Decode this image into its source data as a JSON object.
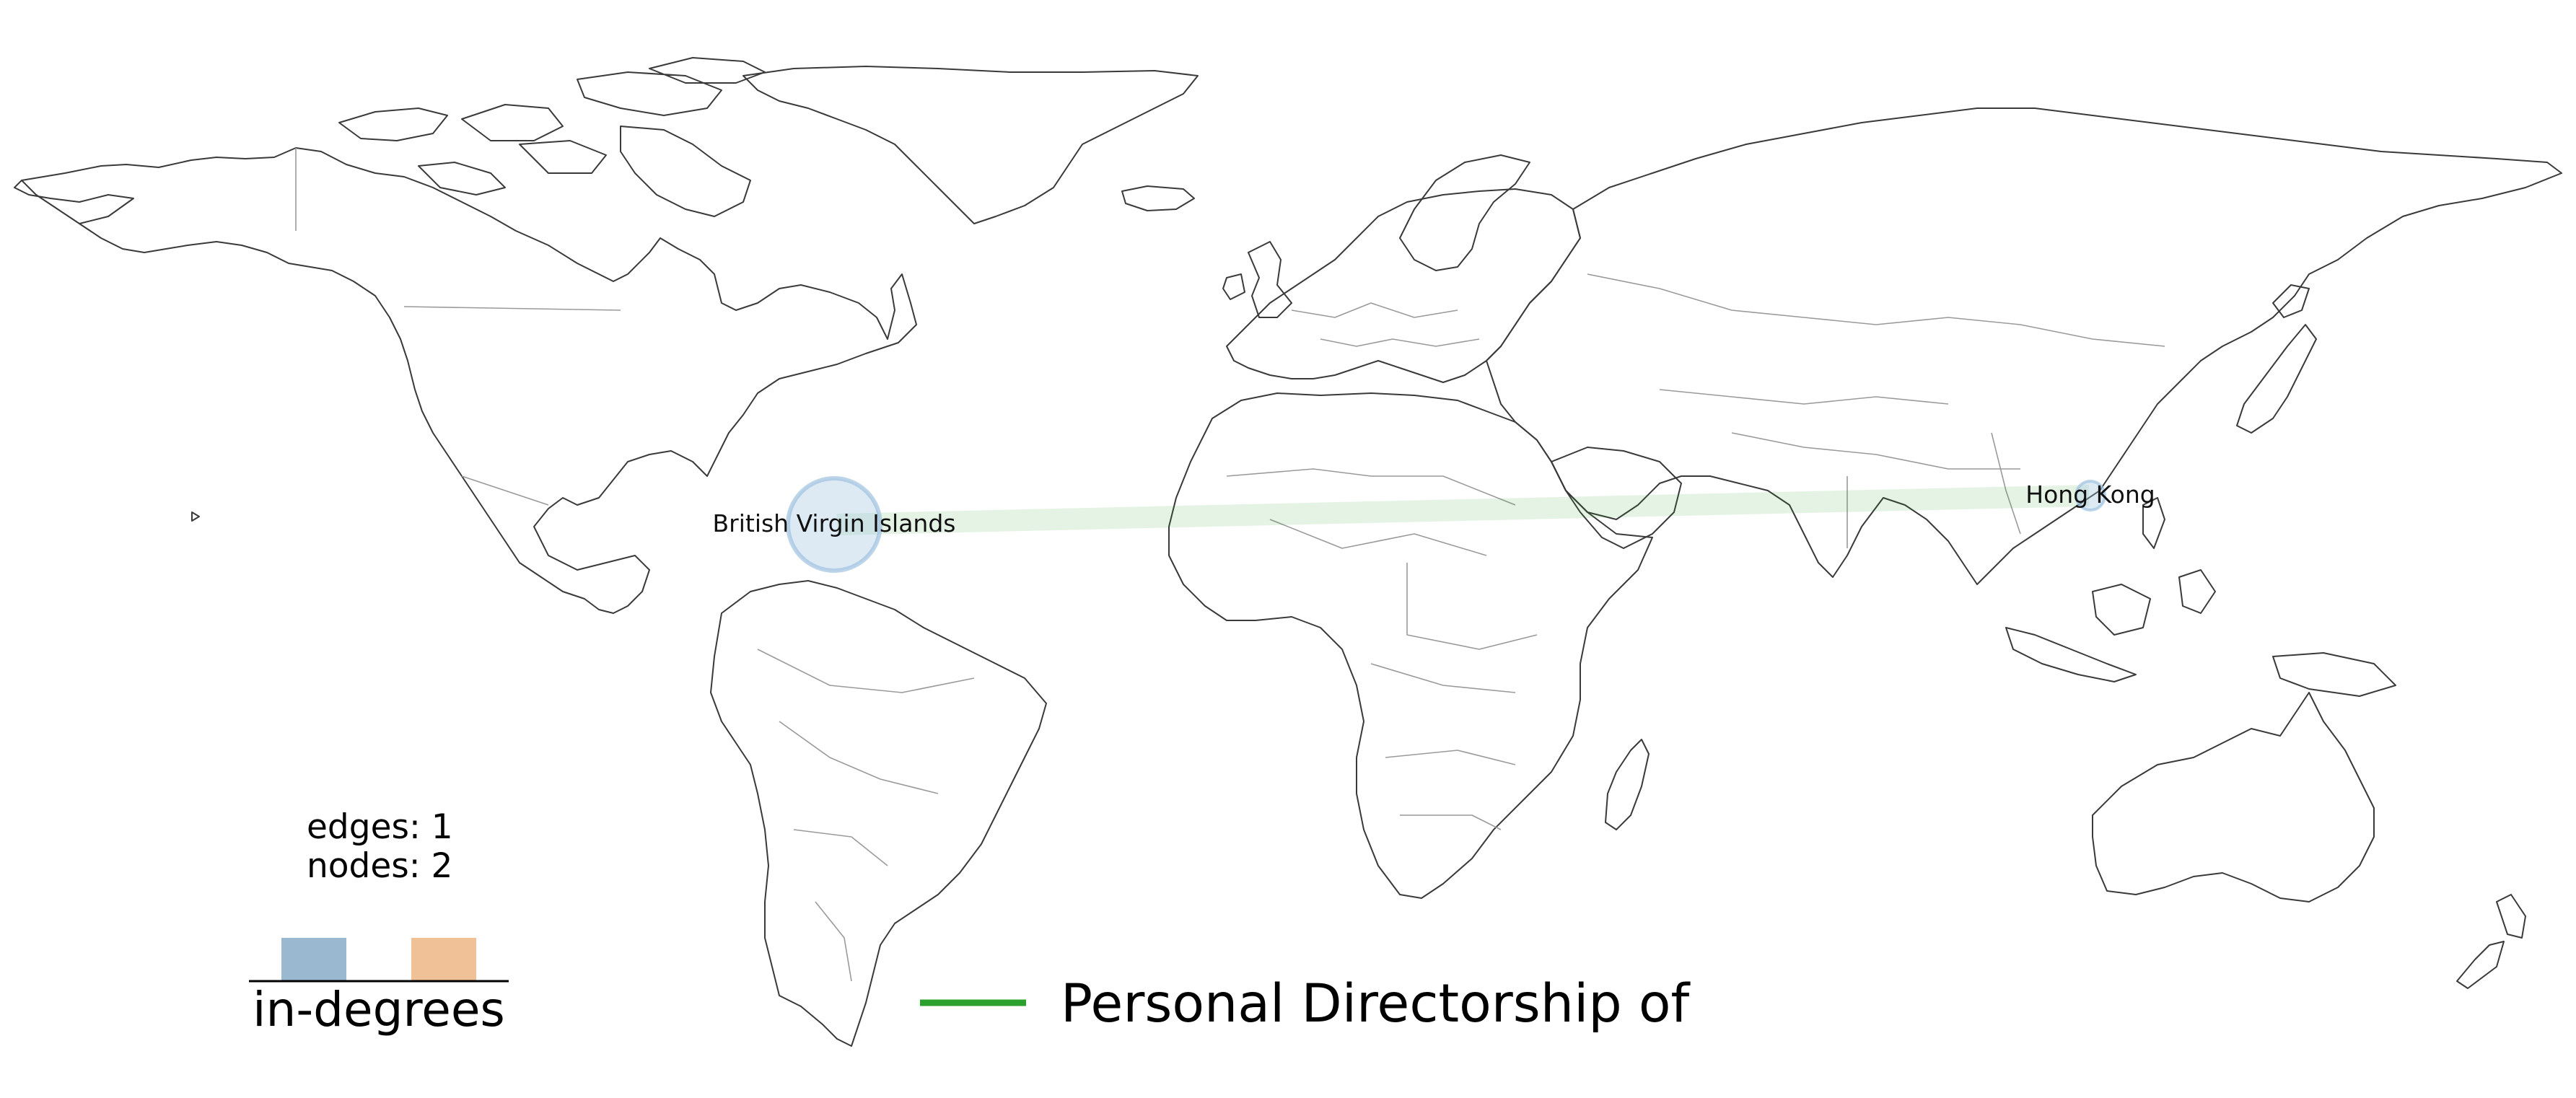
{
  "map": {
    "nodes": [
      {
        "id": "bvi",
        "label": "British Virgin Islands",
        "lon": -64.6,
        "lat": 18.4,
        "size": "large"
      },
      {
        "id": "hk",
        "label": "Hong Kong",
        "lon": 114.2,
        "lat": 22.3,
        "size": "small"
      }
    ],
    "edges": [
      {
        "source": "bvi",
        "target": "hk",
        "type": "Personal Directorship of"
      }
    ],
    "node_color": "#9ec2e0",
    "edge_color": "#2ca02c"
  },
  "stats": {
    "edges": "edges: 1",
    "nodes": "nodes: 2"
  },
  "legend": {
    "title": "in-degrees",
    "swatches": [
      {
        "color": "#9ab8d0"
      },
      {
        "color": "#f0c096"
      }
    ],
    "edge_item": {
      "label": "Personal Directorship of",
      "color": "#2ca02c"
    }
  }
}
